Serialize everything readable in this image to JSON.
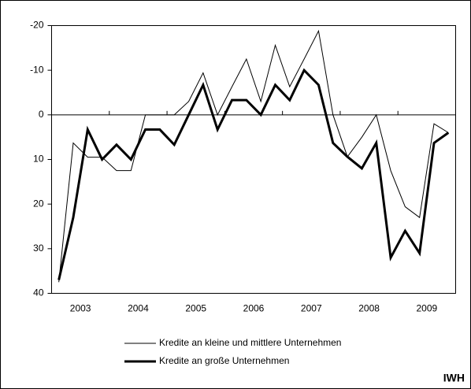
{
  "chart_data": {
    "type": "line",
    "categories": [
      null,
      null,
      null,
      null,
      null,
      null,
      null,
      null,
      null,
      null,
      null,
      null,
      null,
      null,
      null,
      null,
      null,
      null,
      null,
      null,
      null,
      null,
      null,
      null,
      null,
      null,
      null,
      null
    ],
    "x_groups": [
      "2003",
      "2004",
      "2005",
      "2006",
      "2007",
      "2008",
      "2009"
    ],
    "series": [
      {
        "name": "Kredite an kleine und mittlere Unternehmen",
        "color": "#000000",
        "width": 1,
        "values": [
          37.5,
          6.3,
          9.5,
          9.5,
          12.5,
          12.5,
          0,
          0,
          0,
          -3,
          -9.4,
          0,
          -6.3,
          -12.5,
          -3,
          -15.6,
          -6.3,
          -12.5,
          -18.8,
          0,
          9.4,
          5,
          0,
          12.5,
          20.6,
          23,
          2,
          4
        ]
      },
      {
        "name": "Kredite an große Unternehmen",
        "color": "#000000",
        "width": 3,
        "values": [
          37,
          23,
          3.3,
          10,
          6.7,
          10,
          3.3,
          3.3,
          6.7,
          0,
          -6.7,
          3.3,
          -3.3,
          -3.3,
          0,
          -6.7,
          -3.3,
          -10,
          -6.7,
          6.3,
          9.4,
          12,
          6.3,
          32,
          26,
          31,
          6.3,
          4
        ]
      }
    ],
    "ylim": [
      40,
      -20
    ],
    "yticks": [
      -20,
      -10,
      0,
      10,
      20,
      30,
      40
    ],
    "source": "IWH"
  }
}
